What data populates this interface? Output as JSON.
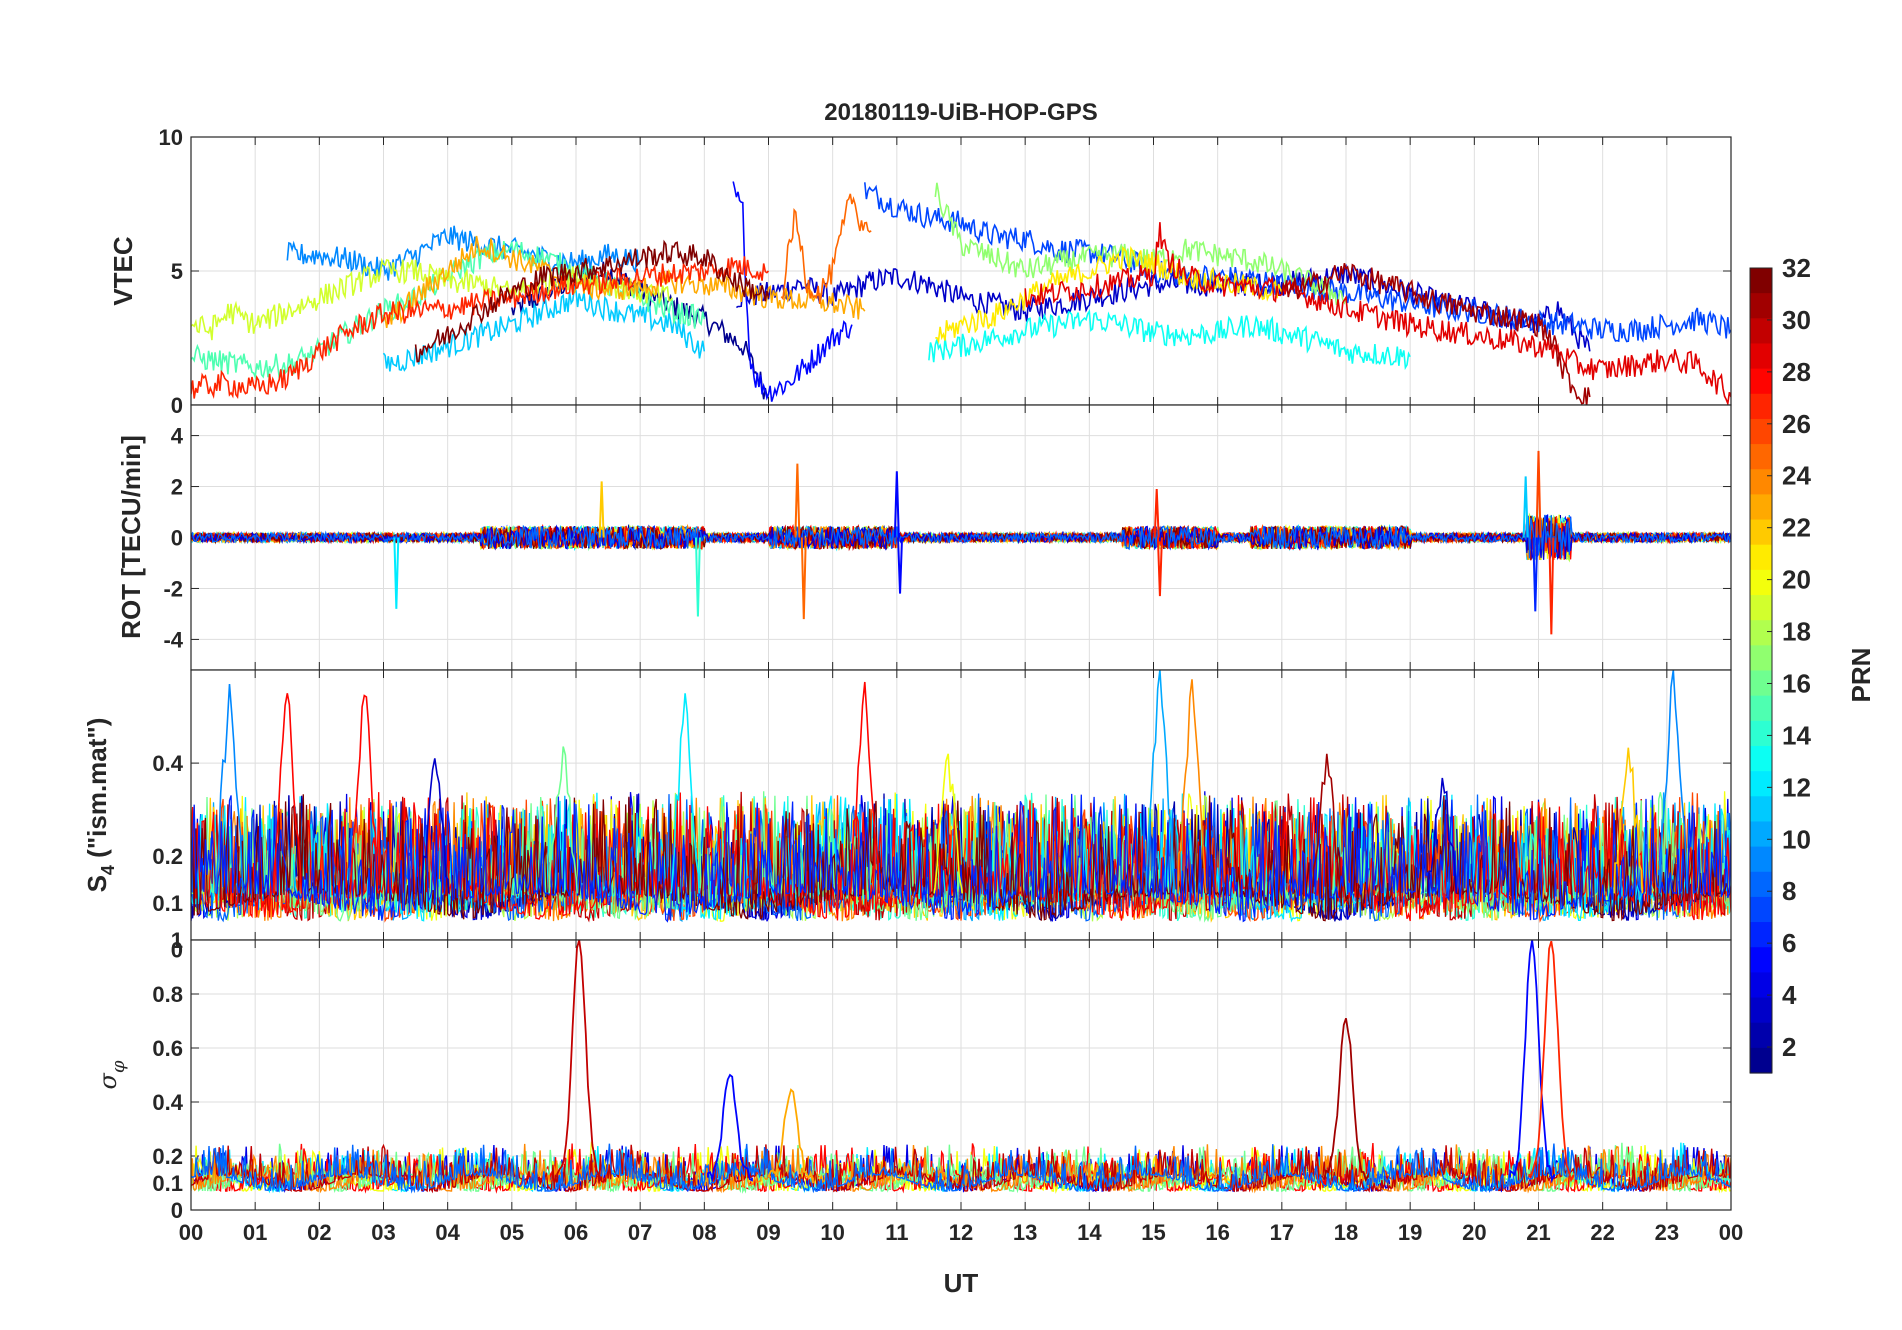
{
  "chart_data": {
    "type": "line",
    "title": "20180119-UiB-HOP-GPS",
    "xlabel": "UT",
    "x_tick_labels": [
      "00",
      "01",
      "02",
      "03",
      "04",
      "05",
      "06",
      "07",
      "08",
      "09",
      "10",
      "11",
      "12",
      "13",
      "14",
      "15",
      "16",
      "17",
      "18",
      "19",
      "20",
      "21",
      "22",
      "23",
      "00"
    ],
    "xlim_hours": [
      0,
      24
    ],
    "grid": true,
    "colorbar": {
      "label": "PRN",
      "range": [
        1,
        32
      ],
      "ticks": [
        "2",
        "4",
        "6",
        "8",
        "10",
        "12",
        "14",
        "16",
        "18",
        "20",
        "22",
        "24",
        "26",
        "28",
        "30",
        "32"
      ],
      "colormap": [
        "#00008f",
        "#0000ff",
        "#0080ff",
        "#00ffff",
        "#80ff80",
        "#ffff00",
        "#ff8000",
        "#ff0000",
        "#800000"
      ]
    },
    "panels": [
      {
        "id": "vtec",
        "ylabel": "VTEC",
        "ylim": [
          0,
          10
        ],
        "y_ticks": [
          "0",
          "5",
          "10"
        ],
        "series": [
          {
            "prn": 1,
            "x": [
              5.0,
              5.8,
              6.5,
              7.2,
              8.0,
              8.6,
              9.0
            ],
            "y": [
              3.5,
              4.5,
              5.0,
              4.0,
              3.2,
              2.2,
              0.3
            ]
          },
          {
            "prn": 3,
            "x": [
              8.5,
              9.1,
              9.5,
              10.0,
              10.6,
              11.0,
              11.5,
              12.0,
              13.0,
              14.0,
              15.0,
              16.0,
              17.0,
              17.5,
              18.0,
              18.5,
              19.0,
              19.5,
              20.0,
              20.5,
              21.0,
              21.3,
              21.6,
              21.8
            ],
            "y": [
              4.0,
              4.2,
              4.5,
              4.0,
              4.6,
              4.8,
              4.5,
              4.0,
              3.5,
              4.0,
              4.5,
              4.5,
              4.5,
              4.7,
              4.9,
              4.5,
              4.2,
              3.8,
              3.6,
              3.2,
              3.0,
              3.6,
              2.6,
              2.0
            ]
          },
          {
            "prn": 5,
            "x": [
              8.45,
              8.6,
              8.7,
              8.8,
              9.0,
              9.3,
              9.6,
              10.0,
              10.3
            ],
            "y": [
              8.0,
              7.2,
              2.0,
              1.0,
              0.5,
              0.8,
              1.5,
              2.5,
              3.0
            ]
          },
          {
            "prn": 7,
            "x": [
              10.5,
              11.0,
              11.5,
              12.0,
              12.5,
              13.0,
              13.5,
              14.0,
              14.5,
              15.0,
              15.5,
              16.0,
              16.5,
              17.0,
              18.0,
              18.5,
              19.0,
              19.5,
              20.0,
              20.5,
              21.0,
              21.5,
              22.0,
              22.5,
              23.0,
              23.5,
              24.0
            ],
            "y": [
              8.0,
              7.4,
              7.0,
              6.8,
              6.3,
              6.2,
              5.8,
              5.7,
              5.5,
              5.0,
              4.8,
              4.8,
              4.7,
              4.5,
              4.2,
              4.0,
              3.8,
              3.6,
              3.5,
              3.3,
              3.1,
              3.0,
              2.8,
              2.8,
              3.0,
              3.2,
              2.8
            ]
          },
          {
            "prn": 9,
            "x": [
              1.5,
              2.0,
              2.5,
              3.0,
              3.5,
              4.0,
              4.5,
              5.0,
              5.5,
              6.0,
              6.5,
              7.0
            ],
            "y": [
              5.6,
              5.6,
              5.4,
              5.0,
              5.6,
              6.3,
              6.0,
              5.8,
              5.5,
              5.3,
              5.6,
              5.4
            ]
          },
          {
            "prn": 11,
            "x": [
              3.0,
              3.5,
              4.0,
              4.5,
              5.0,
              5.5,
              6.0,
              6.5,
              7.0,
              7.5,
              8.0
            ],
            "y": [
              1.5,
              1.8,
              2.2,
              2.6,
              3.0,
              3.5,
              4.0,
              3.6,
              3.3,
              3.0,
              2.0
            ]
          },
          {
            "prn": 13,
            "x": [
              11.5,
              12.0,
              12.5,
              13.0,
              13.5,
              14.0,
              14.5,
              15.0,
              15.5,
              16.0,
              16.5,
              17.0,
              17.5,
              18.0,
              18.5,
              19.0
            ],
            "y": [
              2.0,
              2.2,
              2.5,
              2.8,
              3.0,
              3.2,
              3.0,
              2.7,
              2.6,
              2.7,
              3.0,
              2.7,
              2.4,
              2.0,
              1.9,
              1.8
            ]
          },
          {
            "prn": 15,
            "x": [
              0.0,
              0.5,
              1.0,
              1.5,
              2.0,
              2.5,
              3.0,
              3.5,
              4.0,
              4.5,
              5.0,
              5.5,
              6.0,
              6.5,
              7.0,
              7.5,
              8.0
            ],
            "y": [
              1.8,
              1.6,
              1.4,
              1.5,
              2.0,
              2.8,
              3.5,
              4.0,
              4.8,
              5.5,
              5.8,
              5.5,
              5.0,
              4.5,
              4.0,
              3.5,
              3.2
            ]
          },
          {
            "prn": 17,
            "x": [
              11.6,
              11.8,
              12.0,
              12.5,
              13.0,
              13.5,
              14.0,
              14.5,
              15.0,
              15.5,
              16.0,
              16.5,
              17.0,
              17.5,
              18.0
            ],
            "y": [
              8.0,
              7.0,
              6.0,
              5.5,
              5.0,
              5.3,
              5.5,
              5.6,
              5.4,
              5.8,
              5.6,
              5.4,
              5.0,
              4.5,
              4.0
            ]
          },
          {
            "prn": 19,
            "x": [
              0.0,
              0.3,
              0.6,
              1.0,
              1.5,
              2.0,
              2.5,
              3.0,
              3.5,
              4.0,
              4.5,
              5.0,
              5.5,
              6.0,
              6.5,
              7.0,
              7.5
            ],
            "y": [
              3.0,
              2.8,
              3.5,
              3.0,
              3.5,
              4.0,
              4.5,
              5.0,
              5.0,
              4.6,
              4.5,
              4.2,
              4.5,
              4.8,
              4.5,
              4.2,
              4.0
            ]
          },
          {
            "prn": 21,
            "x": [
              11.6,
              12.0,
              12.5,
              13.0,
              13.5,
              14.0,
              14.5,
              15.0,
              15.5,
              16.0,
              16.5,
              17.0
            ],
            "y": [
              2.5,
              3.0,
              3.3,
              4.0,
              4.6,
              5.0,
              5.5,
              5.3,
              4.8,
              4.6,
              4.4,
              4.2
            ]
          },
          {
            "prn": 23,
            "x": [
              3.0,
              3.5,
              4.0,
              4.5,
              5.0,
              5.5,
              6.0,
              6.5,
              7.0,
              7.5,
              8.0,
              8.5,
              9.0,
              9.5,
              10.0,
              10.5
            ],
            "y": [
              3.0,
              4.0,
              5.0,
              6.0,
              5.5,
              5.0,
              4.5,
              4.3,
              4.4,
              4.6,
              4.5,
              4.3,
              4.0,
              3.9,
              3.8,
              3.5
            ]
          },
          {
            "prn": 25,
            "x": [
              9.2,
              9.3,
              9.4,
              9.5,
              9.6,
              9.8,
              10.0,
              10.2,
              10.3,
              10.4,
              10.6
            ],
            "y": [
              4.0,
              5.5,
              7.0,
              6.0,
              4.5,
              4.2,
              5.0,
              7.0,
              7.8,
              7.0,
              6.5
            ]
          },
          {
            "prn": 27,
            "x": [
              0.0,
              0.5,
              1.0,
              1.5,
              2.0,
              2.5,
              3.0,
              3.5,
              4.0,
              4.5,
              5.0,
              5.5,
              6.0,
              6.5,
              7.0,
              7.5,
              8.0,
              8.5,
              9.0
            ],
            "y": [
              0.6,
              0.8,
              0.6,
              1.0,
              2.0,
              2.8,
              3.4,
              3.5,
              3.6,
              3.8,
              4.0,
              4.3,
              4.5,
              4.6,
              4.8,
              4.9,
              5.0,
              5.2,
              5.0
            ]
          },
          {
            "prn": 29,
            "x": [
              13.0,
              13.5,
              14.0,
              14.5,
              15.0,
              15.1,
              15.2,
              15.5,
              16.0,
              16.5,
              17.0,
              17.5,
              18.0,
              18.5,
              19.0,
              19.5,
              20.0,
              20.5,
              21.0,
              21.3,
              21.6,
              22.0,
              22.5,
              23.0,
              23.5,
              24.0
            ],
            "y": [
              4.0,
              4.2,
              4.4,
              4.6,
              4.9,
              6.5,
              5.5,
              4.8,
              4.5,
              4.4,
              4.3,
              4.0,
              3.6,
              3.3,
              3.0,
              2.8,
              2.6,
              2.4,
              2.2,
              2.0,
              1.5,
              1.3,
              1.5,
              1.7,
              1.5,
              0.3
            ]
          },
          {
            "prn": 32,
            "x": [
              3.5,
              4.0,
              4.5,
              5.0,
              5.5,
              6.0,
              6.5,
              7.0,
              7.5,
              8.0,
              8.5,
              9.0
            ],
            "y": [
              2.0,
              2.6,
              3.5,
              4.2,
              4.8,
              5.0,
              5.2,
              5.5,
              5.7,
              5.5,
              4.6,
              4.0
            ]
          },
          {
            "prn": 31,
            "x": [
              17.0,
              17.5,
              18.0,
              18.5,
              19.0,
              19.5,
              20.0,
              20.5,
              21.0,
              21.2,
              21.4,
              21.6,
              21.8
            ],
            "y": [
              4.2,
              4.5,
              5.0,
              4.6,
              4.2,
              3.8,
              3.5,
              3.3,
              3.0,
              2.5,
              1.2,
              0.5,
              0.3
            ]
          }
        ]
      },
      {
        "id": "rot",
        "ylabel": "ROT [TECU/min]",
        "ylim": [
          -5.2,
          5.2
        ],
        "y_ticks": [
          "-4",
          "-2",
          "0",
          "2",
          "4"
        ],
        "spikes": [
          {
            "prn": 12,
            "x": 3.2,
            "y": -2.8
          },
          {
            "prn": 22,
            "x": 6.4,
            "y": 2.2
          },
          {
            "prn": 14,
            "x": 7.9,
            "y": -3.1
          },
          {
            "prn": 25,
            "x": 9.45,
            "y": 2.9
          },
          {
            "prn": 25,
            "x": 9.55,
            "y": -3.2
          },
          {
            "prn": 5,
            "x": 11.0,
            "y": 2.6
          },
          {
            "prn": 5,
            "x": 11.05,
            "y": -2.2
          },
          {
            "prn": 27,
            "x": 15.1,
            "y": -2.3
          },
          {
            "prn": 27,
            "x": 15.05,
            "y": 1.9
          },
          {
            "prn": 26,
            "x": 21.0,
            "y": 3.4
          },
          {
            "prn": 11,
            "x": 20.8,
            "y": 2.4
          },
          {
            "prn": 27,
            "x": 21.2,
            "y": -3.8
          },
          {
            "prn": 6,
            "x": 20.95,
            "y": -2.9
          }
        ]
      },
      {
        "id": "s4",
        "ylabel": "S4 (\"ism.mat\")",
        "ylabel_main": "S",
        "ylabel_sub": "4",
        "ylabel_rest": " (\"ism.mat\")",
        "ylim": [
          0.02,
          0.6
        ],
        "y_ticks": [
          "0",
          "0.1",
          "0.2",
          "0.4"
        ],
        "peaks": [
          {
            "prn": 9,
            "x": 0.6,
            "y": 0.57
          },
          {
            "prn": 28,
            "x": 1.5,
            "y": 0.55
          },
          {
            "prn": 28,
            "x": 2.7,
            "y": 0.58
          },
          {
            "prn": 3,
            "x": 3.8,
            "y": 0.41
          },
          {
            "prn": 16,
            "x": 5.8,
            "y": 0.44
          },
          {
            "prn": 12,
            "x": 7.7,
            "y": 0.55
          },
          {
            "prn": 28,
            "x": 10.5,
            "y": 0.58
          },
          {
            "prn": 20,
            "x": 11.8,
            "y": 0.42
          },
          {
            "prn": 10,
            "x": 15.1,
            "y": 0.6
          },
          {
            "prn": 24,
            "x": 15.6,
            "y": 0.58
          },
          {
            "prn": 31,
            "x": 17.7,
            "y": 0.42
          },
          {
            "prn": 3,
            "x": 19.5,
            "y": 0.38
          },
          {
            "prn": 9,
            "x": 23.1,
            "y": 0.6
          },
          {
            "prn": 22,
            "x": 22.4,
            "y": 0.45
          }
        ]
      },
      {
        "id": "sigma_phi",
        "ylabel": "σφ",
        "ylabel_main": "σ",
        "ylabel_sub": "φ",
        "ylim": [
          0,
          1
        ],
        "y_ticks": [
          "0",
          "0.1",
          "0.2",
          "0.4",
          "0.6",
          "0.8",
          "1"
        ],
        "peaks": [
          {
            "prn": 30,
            "x": 6.05,
            "y": 1.0
          },
          {
            "prn": 23,
            "x": 9.35,
            "y": 0.45
          },
          {
            "prn": 5,
            "x": 8.4,
            "y": 0.5
          },
          {
            "prn": 31,
            "x": 18.0,
            "y": 0.71
          },
          {
            "prn": 5,
            "x": 20.9,
            "y": 1.0
          },
          {
            "prn": 27,
            "x": 21.2,
            "y": 1.0
          }
        ]
      }
    ]
  }
}
